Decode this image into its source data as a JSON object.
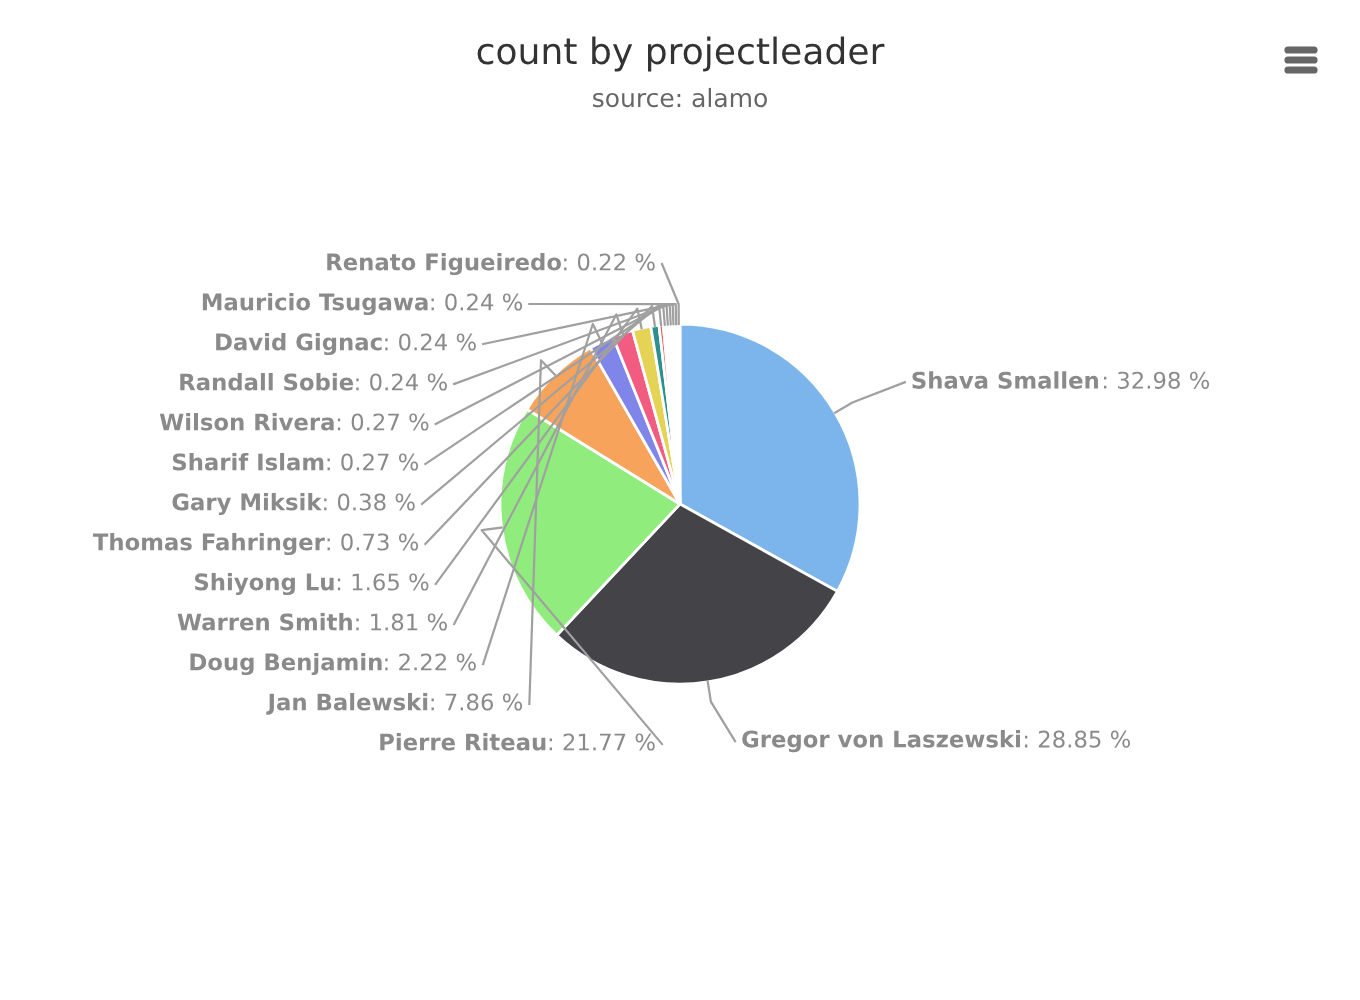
{
  "chart_data": {
    "type": "pie",
    "title": "count by projectleader",
    "subtitle": "source: alamo",
    "categories": [
      "Shava Smallen",
      "Gregor von Laszewski",
      "Pierre Riteau",
      "Jan Balewski",
      "Doug Benjamin",
      "Warren Smith",
      "Shiyong Lu",
      "Thomas Fahringer",
      "Gary Miksik",
      "Sharif Islam",
      "Wilson Rivera",
      "Randall Sobie",
      "David Gignac",
      "Mauricio Tsugawa",
      "Renato Figueiredo"
    ],
    "values": [
      32.98,
      28.85,
      21.77,
      7.86,
      2.22,
      1.81,
      1.65,
      0.73,
      0.38,
      0.27,
      0.27,
      0.24,
      0.24,
      0.24,
      0.22
    ],
    "colors": [
      "#7cb5ec",
      "#434348",
      "#90ed7d",
      "#f7a35c",
      "#8085e9",
      "#f15c80",
      "#e4d354",
      "#2b908f",
      "#f45b5b",
      "#91e8e1",
      "#7cb5ec",
      "#434348",
      "#90ed7d",
      "#f7a35c",
      "#8085e9"
    ],
    "value_labels": [
      ": 32.98 %",
      ": 28.85 %",
      ": 21.77 %",
      ": 7.86 %",
      ": 2.22 %",
      ": 1.81 %",
      ": 1.65 %",
      ": 0.73 %",
      ": 0.38 %",
      ": 0.27 %",
      ": 0.27 %",
      ": 0.24 %",
      ": 0.24 %",
      ": 0.24 %",
      ": 0.22 %"
    ]
  }
}
